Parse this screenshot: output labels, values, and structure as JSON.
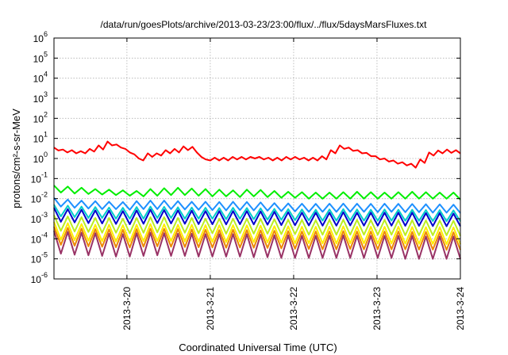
{
  "chart_data": {
    "type": "line",
    "title": "/data/run/goesPlots/archive/2013-03-23/23:00/flux/../flux/5daysMarsFluxes.txt",
    "xlabel": "Coordinated Universal Time (UTC)",
    "ylabel": "protons/cm²-s-sr-MeV",
    "y_scale": "log",
    "ylim": [
      1e-06,
      1000000.0
    ],
    "y_ticks": [
      {
        "base": "10",
        "exp": "-6"
      },
      {
        "base": "10",
        "exp": "-5"
      },
      {
        "base": "10",
        "exp": "-4"
      },
      {
        "base": "10",
        "exp": "-3"
      },
      {
        "base": "10",
        "exp": "-2"
      },
      {
        "base": "10",
        "exp": "-1"
      },
      {
        "base": "10",
        "exp": "0"
      },
      {
        "base": "10",
        "exp": "1"
      },
      {
        "base": "10",
        "exp": "2"
      },
      {
        "base": "10",
        "exp": "3"
      },
      {
        "base": "10",
        "exp": "4"
      },
      {
        "base": "10",
        "exp": "5"
      },
      {
        "base": "10",
        "exp": "6"
      }
    ],
    "xlim": [
      "2013-03-19 03:00",
      "2013-03-24 00:00"
    ],
    "x_ticks": [
      "2013-3-20",
      "2013-3-21",
      "2013-3-22",
      "2013-3-23",
      "2013-3-24"
    ],
    "grid": true,
    "series_style": "sawtooth",
    "series": [
      {
        "color": "#ff0000",
        "values": [
          3.5,
          2.5,
          2.8,
          2.0,
          2.6,
          1.8,
          2.3,
          1.8,
          3.0,
          2.2,
          4.5,
          2.8,
          7.0,
          4.5,
          5.0,
          3.5,
          3.0,
          2.0,
          1.6,
          1.0,
          0.8,
          1.8,
          1.2,
          1.8,
          1.4,
          2.6,
          1.8,
          3.0,
          2.0,
          4.0,
          2.6,
          3.8,
          2.0,
          1.2,
          0.9,
          0.8,
          1.1,
          0.8,
          1.1,
          0.8,
          1.2,
          0.9,
          1.2,
          0.9,
          1.2,
          1.0,
          1.2,
          0.9,
          1.1,
          0.8,
          1.1,
          0.8,
          1.2,
          0.9,
          1.2,
          0.9,
          1.1,
          0.8,
          1.1,
          0.8,
          1.3,
          0.9,
          2.6,
          1.8,
          4.5,
          3.0,
          3.5,
          2.4,
          2.6,
          1.8,
          1.9,
          1.3,
          1.3,
          0.9,
          1.0,
          0.7,
          0.8,
          0.55,
          0.65,
          0.45,
          0.55,
          0.35,
          0.9,
          0.6,
          2.0,
          1.4,
          2.5,
          1.8,
          2.8,
          1.9,
          2.6,
          1.8
        ]
      },
      {
        "color": "#00ee00",
        "values": [
          0.045,
          0.02,
          0.04,
          0.018,
          0.035,
          0.017,
          0.03,
          0.016,
          0.028,
          0.015,
          0.026,
          0.014,
          0.024,
          0.013,
          0.03,
          0.014,
          0.033,
          0.015,
          0.035,
          0.015,
          0.032,
          0.014,
          0.03,
          0.013,
          0.028,
          0.013,
          0.026,
          0.012,
          0.028,
          0.013,
          0.027,
          0.012,
          0.024,
          0.011,
          0.022,
          0.011,
          0.021,
          0.01,
          0.02,
          0.01,
          0.02,
          0.01,
          0.021,
          0.01,
          0.022,
          0.01,
          0.021,
          0.01,
          0.02,
          0.01,
          0.021,
          0.01,
          0.022,
          0.01,
          0.021,
          0.01,
          0.02,
          0.01,
          0.02,
          0.009
        ]
      },
      {
        "color": "#1e90ff",
        "values": [
          0.011,
          0.004,
          0.009,
          0.0035,
          0.008,
          0.0032,
          0.0075,
          0.003,
          0.007,
          0.003,
          0.0068,
          0.0028,
          0.0075,
          0.003,
          0.008,
          0.003,
          0.008,
          0.003,
          0.0075,
          0.0029,
          0.007,
          0.0028,
          0.007,
          0.0027,
          0.0068,
          0.0026,
          0.007,
          0.0027,
          0.0068,
          0.0026,
          0.0065,
          0.0025,
          0.006,
          0.0024,
          0.0058,
          0.0023,
          0.0056,
          0.0022,
          0.0055,
          0.0022,
          0.0056,
          0.0022,
          0.0057,
          0.0022,
          0.0056,
          0.0022,
          0.0055,
          0.0021,
          0.0056,
          0.0022,
          0.0055,
          0.0021,
          0.0054,
          0.0021,
          0.0053,
          0.002,
          0.0052,
          0.002,
          0.005,
          0.0019
        ]
      },
      {
        "color": "#00cccc",
        "values": [
          0.005,
          0.0013,
          0.0045,
          0.0012,
          0.004,
          0.0011,
          0.0038,
          0.0011,
          0.0036,
          0.001,
          0.0035,
          0.001,
          0.0038,
          0.001,
          0.004,
          0.0011,
          0.0039,
          0.0011,
          0.0037,
          0.001,
          0.0036,
          0.001,
          0.0035,
          0.001,
          0.0034,
          0.00095,
          0.0035,
          0.001,
          0.0034,
          0.00095,
          0.0033,
          0.0009,
          0.0031,
          0.00088,
          0.003,
          0.00085,
          0.0029,
          0.00083,
          0.0028,
          0.0008,
          0.0029,
          0.0008,
          0.003,
          0.00082,
          0.0029,
          0.0008,
          0.0028,
          0.0008,
          0.0029,
          0.0008,
          0.0028,
          0.00078,
          0.0028,
          0.00078,
          0.0027,
          0.00076,
          0.0027,
          0.00075,
          0.0026,
          0.00074
        ]
      },
      {
        "color": "#0000cc",
        "values": [
          0.0035,
          0.0007,
          0.003,
          0.00065,
          0.0028,
          0.0006,
          0.0026,
          0.00058,
          0.0025,
          0.00055,
          0.0024,
          0.00053,
          0.0026,
          0.00056,
          0.0028,
          0.0006,
          0.0027,
          0.00058,
          0.0026,
          0.00056,
          0.0025,
          0.00054,
          0.0024,
          0.00053,
          0.0024,
          0.00052,
          0.0024,
          0.00053,
          0.0024,
          0.00052,
          0.0023,
          0.0005,
          0.0022,
          0.00048,
          0.0021,
          0.00047,
          0.002,
          0.00046,
          0.002,
          0.00045,
          0.002,
          0.00045,
          0.0021,
          0.00046,
          0.002,
          0.00045,
          0.002,
          0.00045,
          0.002,
          0.00045,
          0.002,
          0.00044,
          0.002,
          0.00044,
          0.0019,
          0.00043,
          0.0019,
          0.00042,
          0.0018,
          0.00042
        ]
      },
      {
        "color": "#bbee22",
        "values": [
          0.0015,
          0.00025,
          0.0013,
          0.00023,
          0.0012,
          0.00022,
          0.0011,
          0.0002,
          0.0011,
          0.0002,
          0.001,
          0.00019,
          0.0011,
          0.0002,
          0.0012,
          0.00021,
          0.0012,
          0.0002,
          0.0011,
          0.0002,
          0.0011,
          0.00019,
          0.001,
          0.00019,
          0.001,
          0.00018,
          0.001,
          0.00019,
          0.001,
          0.00018,
          0.00098,
          0.00018,
          0.00095,
          0.00017,
          0.0009,
          0.00017,
          0.00088,
          0.00016,
          0.00085,
          0.00016,
          0.00088,
          0.00016,
          0.0009,
          0.00016,
          0.00088,
          0.00016,
          0.00086,
          0.00016,
          0.00088,
          0.00016,
          0.00086,
          0.00015,
          0.00085,
          0.00015,
          0.00083,
          0.00015,
          0.00082,
          0.00015,
          0.0008,
          0.00014
        ]
      },
      {
        "color": "#ffee00",
        "values": [
          0.0007,
          9e-05,
          0.0006,
          8.5e-05,
          0.00055,
          8e-05,
          0.0005,
          7.5e-05,
          0.0005,
          7.2e-05,
          0.00048,
          7e-05,
          0.0005,
          7.5e-05,
          0.00055,
          7.8e-05,
          0.00053,
          7.6e-05,
          0.0005,
          7.3e-05,
          0.0005,
          7e-05,
          0.00048,
          7e-05,
          0.00047,
          6.8e-05,
          0.00048,
          7e-05,
          0.00047,
          6.8e-05,
          0.00045,
          6.6e-05,
          0.00043,
          6.3e-05,
          0.00042,
          6e-05,
          0.0004,
          6e-05,
          0.0004,
          5.8e-05,
          0.0004,
          5.8e-05,
          0.00042,
          6e-05,
          0.0004,
          5.8e-05,
          0.0004,
          5.8e-05,
          0.0004,
          5.8e-05,
          0.0004,
          5.7e-05,
          0.00039,
          5.6e-05,
          0.00038,
          5.5e-05,
          0.00038,
          5.4e-05,
          0.00037,
          5.3e-05
        ]
      },
      {
        "color": "#ee8800",
        "values": [
          0.0004,
          5e-05,
          0.00035,
          4.5e-05,
          0.00032,
          4.2e-05,
          0.0003,
          4e-05,
          0.00029,
          3.8e-05,
          0.00028,
          3.7e-05,
          0.0003,
          4e-05,
          0.00032,
          4.2e-05,
          0.00031,
          4e-05,
          0.0003,
          3.9e-05,
          0.00029,
          3.8e-05,
          0.00028,
          3.7e-05,
          0.00027,
          3.6e-05,
          0.00028,
          3.7e-05,
          0.00027,
          3.6e-05,
          0.00026,
          3.5e-05,
          0.00025,
          3.3e-05,
          0.00024,
          3.2e-05,
          0.00023,
          3.1e-05,
          0.00023,
          3e-05,
          0.00023,
          3e-05,
          0.00024,
          3.1e-05,
          0.00023,
          3e-05,
          0.00023,
          3e-05,
          0.00023,
          3e-05,
          0.00023,
          3e-05,
          0.00022,
          2.9e-05,
          0.00022,
          2.9e-05,
          0.00021,
          2.8e-05,
          0.00021,
          2.8e-05
        ]
      },
      {
        "color": "#993366",
        "values": [
          0.00025,
          1.8e-05,
          0.00022,
          1.6e-05,
          0.0002,
          1.5e-05,
          0.00019,
          1.4e-05,
          0.00018,
          1.3e-05,
          0.00017,
          1.3e-05,
          0.00019,
          1.4e-05,
          0.0002,
          1.5e-05,
          0.00019,
          1.4e-05,
          0.00018,
          1.4e-05,
          0.00018,
          1.3e-05,
          0.00017,
          1.3e-05,
          0.00017,
          1.3e-05,
          0.00017,
          1.3e-05,
          0.00017,
          1.2e-05,
          0.00016,
          1.2e-05,
          0.00015,
          1.1e-05,
          0.00015,
          1.1e-05,
          0.00014,
          1.1e-05,
          0.00014,
          1.1e-05,
          0.00014,
          1.1e-05,
          0.00015,
          1.1e-05,
          0.00014,
          1.1e-05,
          0.00014,
          1.1e-05,
          0.00014,
          1.1e-05,
          0.00014,
          1e-05,
          0.00014,
          1e-05,
          0.00013,
          1e-05,
          0.00013,
          1e-05,
          0.00013,
          1e-05
        ]
      }
    ]
  }
}
